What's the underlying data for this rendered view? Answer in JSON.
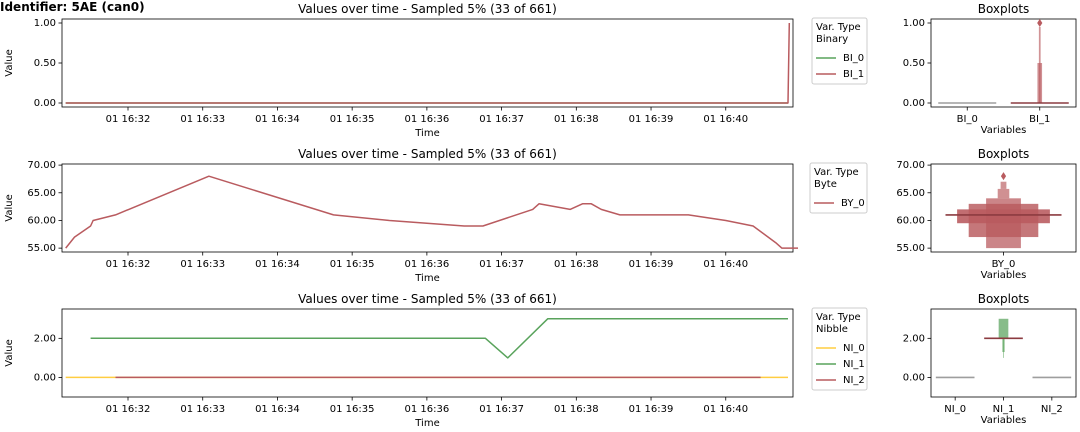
{
  "title": "Identifier: 5AE (can0)",
  "colors": {
    "green": "#59a35c",
    "red": "#b95b5f",
    "yellow": "#ffcd41",
    "gray": "#9e9e9e"
  },
  "chart_data": [
    {
      "type": "line",
      "title": "Values over time - Sampled 5% (33 of 661)",
      "xlabel": "Time",
      "ylabel": "Value",
      "xlim": [
        "01 16:31:07",
        "01 16:40:54"
      ],
      "ylim": [
        -0.05,
        1.05
      ],
      "yticks": [
        0,
        0.5,
        1
      ],
      "ytick_labels": [
        "0.00",
        "0.50",
        "1.00"
      ],
      "xticks": [
        "01 16:32",
        "01 16:33",
        "01 16:34",
        "01 16:35",
        "01 16:36",
        "01 16:37",
        "01 16:38",
        "01 16:39",
        "01 16:40"
      ],
      "legend": {
        "title": "Var. Type\nBinary",
        "placement": "outside right"
      },
      "series": [
        {
          "name": "BI_0",
          "color": "#59a35c",
          "points": [
            [
              "01 16:31:10",
              0
            ],
            [
              "01 16:40:50",
              0
            ]
          ]
        },
        {
          "name": "BI_1",
          "color": "#b95b5f",
          "points": [
            [
              "01 16:31:10",
              0
            ],
            [
              "01 16:40:37",
              0
            ],
            [
              "01 16:40:50",
              0
            ],
            [
              "01 16:40:51",
              1
            ]
          ]
        }
      ]
    },
    {
      "type": "line",
      "title": "Values over time - Sampled 5% (33 of 661)",
      "xlabel": "Time",
      "ylabel": "Value",
      "xlim": [
        "01 16:31:07",
        "01 16:40:54"
      ],
      "ylim": [
        54.3,
        70.2
      ],
      "yticks": [
        55,
        60,
        65,
        70
      ],
      "ytick_labels": [
        "55.00",
        "60.00",
        "65.00",
        "70.00"
      ],
      "xticks": [
        "01 16:32",
        "01 16:33",
        "01 16:34",
        "01 16:35",
        "01 16:36",
        "01 16:37",
        "01 16:38",
        "01 16:39",
        "01 16:40"
      ],
      "legend": {
        "title": "Var. Type\nByte",
        "placement": "outside right"
      },
      "series": [
        {
          "name": "BY_0",
          "color": "#b95b5f",
          "points": [
            [
              "01 16:31:10",
              55
            ],
            [
              "01 16:31:17",
              57
            ],
            [
              "01 16:31:30",
              59
            ],
            [
              "01 16:31:32",
              60
            ],
            [
              "01 16:31:50",
              61
            ],
            [
              "01 16:33:05",
              68
            ],
            [
              "01 16:34:45",
              61
            ],
            [
              "01 16:35:30",
              60
            ],
            [
              "01 16:36:30",
              59
            ],
            [
              "01 16:36:45",
              59
            ],
            [
              "01 16:37:25",
              62
            ],
            [
              "01 16:37:30",
              63
            ],
            [
              "01 16:37:55",
              62
            ],
            [
              "01 16:38:05",
              63
            ],
            [
              "01 16:38:12",
              63
            ],
            [
              "01 16:38:20",
              62
            ],
            [
              "01 16:38:35",
              61
            ],
            [
              "01 16:39:30",
              61
            ],
            [
              "01 16:40:00",
              60
            ],
            [
              "01 16:40:22",
              59
            ],
            [
              "01 16:40:40",
              56
            ],
            [
              "01 16:40:45",
              55
            ],
            [
              "01 16:40:58",
              55
            ]
          ]
        }
      ]
    },
    {
      "type": "line",
      "title": "Values over time - Sampled 5% (33 of 661)",
      "xlabel": "Time",
      "ylabel": "Value",
      "xlim": [
        "01 16:31:07",
        "01 16:40:54"
      ],
      "ylim": [
        -1,
        3.5
      ],
      "yticks": [
        0,
        2
      ],
      "ytick_labels": [
        "0.00",
        "2.00"
      ],
      "xticks": [
        "01 16:32",
        "01 16:33",
        "01 16:34",
        "01 16:35",
        "01 16:36",
        "01 16:37",
        "01 16:38",
        "01 16:39",
        "01 16:40"
      ],
      "legend": {
        "title": "Var. Type\nNibble",
        "placement": "outside right"
      },
      "series": [
        {
          "name": "NI_0",
          "color": "#ffcd41",
          "points": [
            [
              "01 16:31:10",
              0
            ],
            [
              "01 16:40:50",
              0
            ]
          ]
        },
        {
          "name": "NI_1",
          "color": "#59a35c",
          "points": [
            [
              "01 16:31:30",
              2
            ],
            [
              "01 16:36:47",
              2
            ],
            [
              "01 16:37:05",
              1
            ],
            [
              "01 16:37:37",
              3
            ],
            [
              "01 16:40:50",
              3
            ]
          ]
        },
        {
          "name": "NI_2",
          "color": "#b95b5f",
          "points": [
            [
              "01 16:31:50",
              0
            ],
            [
              "01 16:40:28",
              0
            ]
          ]
        }
      ]
    },
    {
      "type": "boxplot",
      "title": "Boxplots",
      "xlabel": "Variables",
      "ylim": [
        -0.05,
        1.05
      ],
      "yticks": [
        0,
        0.5,
        1
      ],
      "ytick_labels": [
        "0.00",
        "0.50",
        "1.00"
      ],
      "categories": [
        "BI_0",
        "BI_1"
      ],
      "boxes": [
        {
          "median": 0,
          "fill": "#9e9e9e",
          "levels": []
        },
        {
          "median": 0,
          "fill": "#b95b5f",
          "levels": [
            [
              0,
              0.5,
              0.08
            ],
            [
              0,
              0.95,
              0.03
            ]
          ],
          "outliers": [
            1
          ]
        }
      ]
    },
    {
      "type": "boxplot",
      "title": "Boxplots",
      "xlabel": "Variables",
      "ylim": [
        54.3,
        70.2
      ],
      "yticks": [
        55,
        60,
        65,
        70
      ],
      "ytick_labels": [
        "55.00",
        "60.00",
        "65.00",
        "70.00"
      ],
      "categories": [
        "BY_0"
      ],
      "boxes": [
        {
          "median": 61,
          "fill": "#b95b5f",
          "levels": [
            [
              59.5,
              62,
              0.8
            ],
            [
              57,
              63,
              0.6
            ],
            [
              55,
              64,
              0.3
            ],
            [
              64,
              65.7,
              0.1
            ],
            [
              65.7,
              67,
              0.05
            ]
          ],
          "outliers": [
            68
          ]
        }
      ]
    },
    {
      "type": "boxplot",
      "title": "Boxplots",
      "xlabel": "Variables",
      "ylim": [
        -1,
        3.5
      ],
      "yticks": [
        0,
        2
      ],
      "ytick_labels": [
        "0.00",
        "2.00"
      ],
      "categories": [
        "NI_0",
        "NI_1",
        "NI_2"
      ],
      "boxes": [
        {
          "median": 0,
          "fill": "#9e9e9e",
          "levels": []
        },
        {
          "median": 2,
          "fill": "#59a35c",
          "levels": [
            [
              2,
              3,
              0.25
            ],
            [
              1.3,
              2,
              0.06
            ],
            [
              1,
              2,
              0.02
            ]
          ]
        },
        {
          "median": 0,
          "fill": "#9e9e9e",
          "levels": []
        }
      ]
    }
  ]
}
